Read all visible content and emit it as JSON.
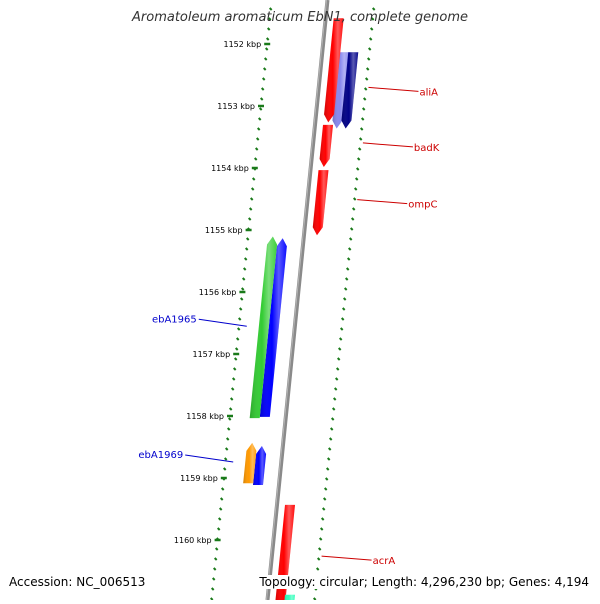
{
  "title": "Aromatoleum aromaticum EbN1, complete genome",
  "accession": "Accession: NC_006513",
  "topology": "Topology: circular; Length: 4,296,230 bp; Genes: 4,194",
  "colors": {
    "backbone": "#8a8a8a",
    "ticks": "#1a7a1a",
    "forward_label": "#cc0000",
    "reverse_label": "#0000cc",
    "red": "#ff0000",
    "green": "#33cc33",
    "blue": "#0000ff",
    "orange": "#ff9900",
    "lightblue": "#8888ee",
    "navy": "#000088",
    "teal": "#33ffbb"
  },
  "axis": {
    "unit": "kbp",
    "ticks": [
      {
        "kbp": 1152,
        "label": "1152 kbp"
      },
      {
        "kbp": 1153,
        "label": "1153 kbp"
      },
      {
        "kbp": 1154,
        "label": "1154 kbp"
      },
      {
        "kbp": 1155,
        "label": "1155 kbp"
      },
      {
        "kbp": 1156,
        "label": "1156 kbp"
      },
      {
        "kbp": 1157,
        "label": "1157 kbp"
      },
      {
        "kbp": 1158,
        "label": "1158 kbp"
      },
      {
        "kbp": 1159,
        "label": "1159 kbp"
      },
      {
        "kbp": 1160,
        "label": "1160 kbp"
      }
    ]
  },
  "genes": [
    {
      "name": "aliA",
      "strand": "forward",
      "lane": 1,
      "start_kbp": 1152.15,
      "end_kbp": 1153.38,
      "color": "lightblue"
    },
    {
      "name": "",
      "strand": "forward",
      "lane": 2,
      "start_kbp": 1152.15,
      "end_kbp": 1153.38,
      "color": "navy"
    },
    {
      "name": "",
      "strand": "forward",
      "lane": 0,
      "start_kbp": 1151.6,
      "end_kbp": 1153.28,
      "color": "red"
    },
    {
      "name": "badK",
      "strand": "forward",
      "lane": 0,
      "start_kbp": 1153.32,
      "end_kbp": 1154.0,
      "color": "red"
    },
    {
      "name": "ompC",
      "strand": "forward",
      "lane": 0,
      "start_kbp": 1154.05,
      "end_kbp": 1155.1,
      "color": "red"
    },
    {
      "name": "",
      "strand": "reverse",
      "lane": 0,
      "start_kbp": 1155.15,
      "end_kbp": 1158.03,
      "color": "blue"
    },
    {
      "name": "ebA1965",
      "strand": "reverse",
      "lane": 1,
      "start_kbp": 1155.12,
      "end_kbp": 1158.05,
      "color": "green"
    },
    {
      "name": "",
      "strand": "reverse",
      "lane": 0,
      "start_kbp": 1158.5,
      "end_kbp": 1159.13,
      "color": "blue"
    },
    {
      "name": "ebA1969",
      "strand": "reverse",
      "lane": 1,
      "start_kbp": 1158.45,
      "end_kbp": 1159.1,
      "color": "orange"
    },
    {
      "name": "acrA",
      "strand": "forward",
      "lane": 0,
      "start_kbp": 1159.45,
      "end_kbp": 1161.2,
      "color": "red"
    },
    {
      "name": "",
      "strand": "forward",
      "lane": 1,
      "start_kbp": 1160.9,
      "end_kbp": 1161.2,
      "color": "teal"
    }
  ],
  "labels": [
    {
      "text": "aliA",
      "gene": "aliA",
      "strand": "forward"
    },
    {
      "text": "badK",
      "gene": "badK",
      "strand": "forward"
    },
    {
      "text": "ompC",
      "gene": "ompC",
      "strand": "forward"
    },
    {
      "text": "ebA1965",
      "gene": "ebA1965",
      "strand": "reverse"
    },
    {
      "text": "ebA1969",
      "gene": "ebA1969",
      "strand": "reverse"
    },
    {
      "text": "acrA",
      "gene": "acrA",
      "strand": "forward"
    }
  ]
}
